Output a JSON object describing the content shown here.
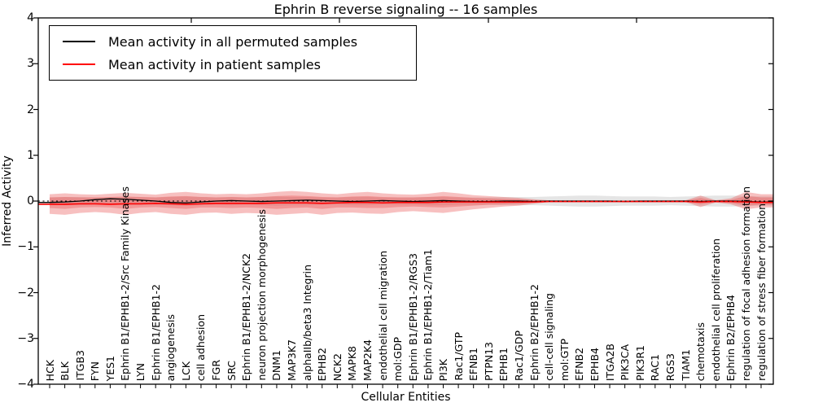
{
  "chart_data": {
    "type": "line",
    "title": "Ephrin B reverse signaling -- 16 samples",
    "xlabel": "Cellular Entities",
    "ylabel": "Inferred Activity",
    "ylim": [
      -4,
      4
    ],
    "yticks": [
      "4",
      "3",
      "2",
      "1",
      "0",
      "−1",
      "−2",
      "−3",
      "−4"
    ],
    "grid": false,
    "legend_position": "upper left",
    "zero_line": {
      "y": 0,
      "style": "dashed",
      "color": "#000000"
    },
    "categories": [
      "HCK",
      "BLK",
      "ITGB3",
      "FYN",
      "YES1",
      "Ephrin B1/EPHB1-2/Src Family Kinases",
      "LYN",
      "Ephrin B1/EPHB1-2",
      "angiogenesis",
      "LCK",
      "cell adhesion",
      "FGR",
      "SRC",
      "Ephrin B1/EPHB1-2/NCK2",
      "neuron projection morphogenesis",
      "DNM1",
      "MAP3K7",
      "alphaIIb/beta3 Integrin",
      "EPHB2",
      "NCK2",
      "MAPK8",
      "MAP2K4",
      "endothelial cell migration",
      "mol:GDP",
      "Ephrin B1/EPHB1-2/RGS3",
      "Ephrin B1/EPHB1-2/Tiam1",
      "PI3K",
      "Rac1/GTP",
      "EFNB1",
      "PTPN13",
      "EPHB1",
      "Rac1/GDP",
      "Ephrin B2/EPHB1-2",
      "cell-cell signaling",
      "mol:GTP",
      "EFNB2",
      "EPHB4",
      "ITGA2B",
      "PIK3CA",
      "PIK3R1",
      "RAC1",
      "RGS3",
      "TIAM1",
      "chemotaxis",
      "endothelial cell proliferation",
      "Ephrin B2/EPHB4",
      "regulation of focal adhesion formation",
      "regulation of stress fiber formation"
    ],
    "series": [
      {
        "name": "Mean activity in all permuted samples",
        "color": "#000000",
        "width": 1.3,
        "values": [
          -0.03,
          -0.02,
          0,
          0.03,
          0.05,
          0.04,
          0.02,
          0,
          -0.03,
          -0.04,
          -0.02,
          0,
          0.01,
          0,
          -0.01,
          0,
          0.01,
          0.02,
          0.01,
          0,
          -0.01,
          0,
          0.01,
          0,
          -0.01,
          0,
          0.01,
          0,
          -0.01,
          -0.01,
          0,
          0,
          -0.01,
          0,
          0,
          0,
          0,
          0,
          -0.01,
          0,
          0,
          0,
          0,
          -0.01,
          0,
          0,
          -0.01,
          -0.02
        ]
      },
      {
        "name": "Mean activity in patient samples",
        "color": "#ff0000",
        "width": 1.6,
        "values": [
          -0.07,
          -0.07,
          -0.06,
          -0.06,
          -0.07,
          -0.06,
          -0.06,
          -0.05,
          -0.06,
          -0.07,
          -0.06,
          -0.05,
          -0.05,
          -0.05,
          -0.05,
          -0.04,
          -0.04,
          -0.04,
          -0.05,
          -0.04,
          -0.03,
          -0.03,
          -0.04,
          -0.03,
          -0.03,
          -0.03,
          -0.02,
          -0.02,
          -0.02,
          -0.02,
          -0.02,
          -0.02,
          -0.02,
          -0.01,
          -0.01,
          -0.01,
          -0.01,
          -0.01,
          -0.01,
          -0.01,
          -0.01,
          -0.01,
          -0.01,
          -0.02,
          -0.01,
          -0.01,
          -0.02,
          -0.03
        ]
      }
    ],
    "bands": [
      {
        "name": "permuted-range",
        "fill": "#aaaaaa",
        "opacity": 0.3,
        "upper": [
          0.08,
          0.09,
          0.09,
          0.08,
          0.08,
          0.09,
          0.09,
          0.08,
          0.09,
          0.1,
          0.09,
          0.08,
          0.09,
          0.08,
          0.09,
          0.1,
          0.09,
          0.09,
          0.08,
          0.08,
          0.09,
          0.09,
          0.08,
          0.08,
          0.08,
          0.09,
          0.09,
          0.08,
          0.08,
          0.08,
          0.09,
          0.09,
          0.09,
          0.1,
          0.11,
          0.12,
          0.12,
          0.11,
          0.1,
          0.1,
          0.1,
          0.09,
          0.1,
          0.11,
          0.12,
          0.12,
          0.11,
          0.1
        ],
        "lower": [
          -0.08,
          -0.09,
          -0.09,
          -0.08,
          -0.08,
          -0.09,
          -0.09,
          -0.08,
          -0.09,
          -0.1,
          -0.09,
          -0.08,
          -0.09,
          -0.08,
          -0.09,
          -0.1,
          -0.09,
          -0.09,
          -0.08,
          -0.08,
          -0.09,
          -0.09,
          -0.08,
          -0.08,
          -0.08,
          -0.09,
          -0.09,
          -0.08,
          -0.08,
          -0.08,
          -0.09,
          -0.09,
          -0.09,
          -0.1,
          -0.11,
          -0.12,
          -0.12,
          -0.11,
          -0.1,
          -0.1,
          -0.1,
          -0.09,
          -0.1,
          -0.11,
          -0.12,
          -0.12,
          -0.11,
          -0.1
        ]
      },
      {
        "name": "patient-range-outer",
        "fill": "#e84a4a",
        "opacity": 0.35,
        "upper": [
          0.15,
          0.17,
          0.15,
          0.14,
          0.16,
          0.18,
          0.16,
          0.14,
          0.18,
          0.2,
          0.17,
          0.15,
          0.16,
          0.15,
          0.17,
          0.2,
          0.22,
          0.2,
          0.17,
          0.15,
          0.18,
          0.2,
          0.17,
          0.15,
          0.14,
          0.16,
          0.2,
          0.17,
          0.13,
          0.11,
          0.09,
          0.07,
          0.04,
          0.015,
          0.01,
          0.01,
          0.01,
          0.01,
          0.01,
          0.01,
          0.01,
          0.01,
          0.015,
          0.12,
          0.02,
          0.06,
          0.2,
          0.15
        ],
        "lower": [
          -0.28,
          -0.3,
          -0.26,
          -0.24,
          -0.26,
          -0.3,
          -0.26,
          -0.24,
          -0.28,
          -0.3,
          -0.26,
          -0.25,
          -0.28,
          -0.26,
          -0.27,
          -0.3,
          -0.28,
          -0.26,
          -0.3,
          -0.26,
          -0.25,
          -0.27,
          -0.28,
          -0.24,
          -0.22,
          -0.24,
          -0.26,
          -0.22,
          -0.18,
          -0.15,
          -0.12,
          -0.1,
          -0.06,
          -0.02,
          -0.015,
          -0.015,
          -0.015,
          -0.015,
          -0.015,
          -0.015,
          -0.015,
          -0.015,
          -0.02,
          -0.13,
          -0.03,
          -0.07,
          -0.18,
          -0.14
        ]
      },
      {
        "name": "patient-range-inner",
        "fill": "#e84a4a",
        "opacity": 0.35,
        "upper": [
          0.08,
          0.09,
          0.08,
          0.08,
          0.09,
          0.1,
          0.09,
          0.08,
          0.1,
          0.11,
          0.09,
          0.08,
          0.09,
          0.08,
          0.09,
          0.11,
          0.12,
          0.11,
          0.09,
          0.08,
          0.1,
          0.11,
          0.09,
          0.08,
          0.08,
          0.09,
          0.11,
          0.09,
          0.07,
          0.06,
          0.05,
          0.04,
          0.02,
          0.008,
          0.006,
          0.006,
          0.006,
          0.006,
          0.006,
          0.006,
          0.006,
          0.006,
          0.008,
          0.07,
          0.01,
          0.03,
          0.11,
          0.08
        ],
        "lower": [
          -0.15,
          -0.17,
          -0.14,
          -0.13,
          -0.14,
          -0.17,
          -0.14,
          -0.13,
          -0.15,
          -0.17,
          -0.14,
          -0.14,
          -0.15,
          -0.14,
          -0.15,
          -0.17,
          -0.15,
          -0.14,
          -0.17,
          -0.14,
          -0.14,
          -0.15,
          -0.15,
          -0.13,
          -0.12,
          -0.13,
          -0.14,
          -0.12,
          -0.1,
          -0.08,
          -0.07,
          -0.06,
          -0.03,
          -0.01,
          -0.008,
          -0.008,
          -0.008,
          -0.008,
          -0.008,
          -0.008,
          -0.008,
          -0.008,
          -0.01,
          -0.07,
          -0.02,
          -0.04,
          -0.1,
          -0.08
        ]
      }
    ]
  }
}
